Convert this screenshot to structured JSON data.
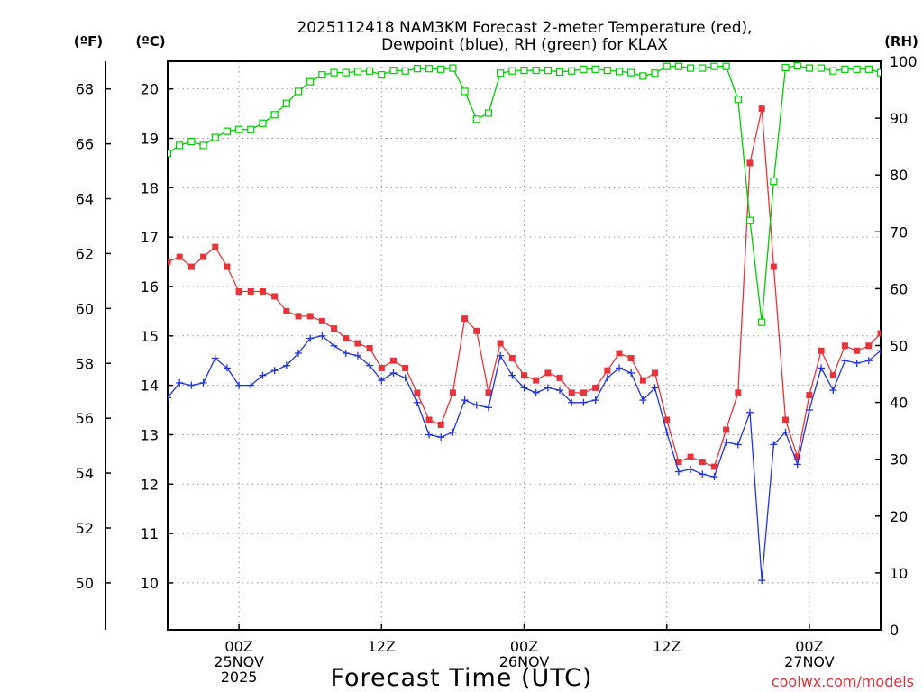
{
  "title": {
    "line1": "2025112418 NAM3KM Forecast 2-meter Temperature (red),",
    "line2": "Dewpoint (blue), RH (green) for KLAX"
  },
  "units": {
    "fahrenheit": "(ºF)",
    "celsius": "(ºC)",
    "rh": "(RH)"
  },
  "x_axis": {
    "title": "Forecast Time (UTC)",
    "ticks": [
      {
        "hour": 6,
        "lines": [
          "00Z",
          "25NOV",
          "2025"
        ]
      },
      {
        "hour": 18,
        "lines": [
          "12Z"
        ]
      },
      {
        "hour": 30,
        "lines": [
          "00Z",
          "26NOV"
        ]
      },
      {
        "hour": 42,
        "lines": [
          "12Z"
        ]
      },
      {
        "hour": 54,
        "lines": [
          "00Z",
          "27NOV"
        ]
      }
    ]
  },
  "credit": "coolwx.com/models",
  "colors": {
    "temperature": "#e8333b",
    "dewpoint": "#2233dd",
    "rh": "#00cc00",
    "grid": "#9a9a9a"
  },
  "chart_data": {
    "type": "line",
    "title": "2025112418 NAM3KM Forecast 2-meter Temperature (red), Dewpoint (blue), RH (green) for KLAX",
    "xlabel": "Forecast Time (UTC)",
    "x_unit": "hours from 2025-11-24 18Z",
    "xlim": [
      0,
      60
    ],
    "y_left_celsius_ticks": [
      10,
      11,
      12,
      13,
      14,
      15,
      16,
      17,
      18,
      19,
      20
    ],
    "y_left_fahrenheit_ticks": [
      50,
      52,
      54,
      56,
      58,
      60,
      62,
      64,
      66,
      68
    ],
    "y_right_rh_ticks": [
      0,
      10,
      20,
      30,
      40,
      50,
      60,
      70,
      80,
      90,
      100
    ],
    "ylim_celsius": [
      9.05,
      20.56
    ],
    "ylim_rh": [
      0,
      100
    ],
    "grid": true,
    "series": [
      {
        "name": "Temperature",
        "axis": "celsius",
        "color": "#e8333b",
        "marker": "filled-square",
        "x": [
          0,
          1,
          2,
          3,
          4,
          5,
          6,
          7,
          8,
          9,
          10,
          11,
          12,
          13,
          14,
          15,
          16,
          17,
          18,
          19,
          20,
          21,
          22,
          23,
          24,
          25,
          26,
          27,
          28,
          29,
          30,
          31,
          32,
          33,
          34,
          35,
          36,
          37,
          38,
          39,
          40,
          41,
          42,
          43,
          44,
          45,
          46,
          47,
          48,
          49,
          50,
          51,
          52,
          53,
          54,
          55,
          56,
          57,
          58,
          59,
          60
        ],
        "values": [
          16.5,
          16.6,
          16.4,
          16.6,
          16.8,
          16.4,
          15.9,
          15.9,
          15.9,
          15.8,
          15.5,
          15.4,
          15.4,
          15.3,
          15.15,
          14.95,
          14.85,
          14.75,
          14.35,
          14.5,
          14.35,
          13.85,
          13.3,
          13.2,
          13.85,
          15.35,
          15.1,
          13.85,
          14.85,
          14.55,
          14.2,
          14.1,
          14.25,
          14.15,
          13.85,
          13.85,
          13.95,
          14.3,
          14.65,
          14.55,
          14.1,
          14.25,
          13.3,
          12.45,
          12.55,
          12.45,
          12.35,
          13.1,
          13.85,
          18.5,
          19.6,
          16.4,
          13.3,
          12.55,
          13.8,
          14.7,
          14.2,
          14.8,
          14.7,
          14.8,
          15.05
        ]
      },
      {
        "name": "Dewpoint",
        "axis": "celsius",
        "color": "#2233dd",
        "marker": "plus",
        "x": [
          0,
          1,
          2,
          3,
          4,
          5,
          6,
          7,
          8,
          9,
          10,
          11,
          12,
          13,
          14,
          15,
          16,
          17,
          18,
          19,
          20,
          21,
          22,
          23,
          24,
          25,
          26,
          27,
          28,
          29,
          30,
          31,
          32,
          33,
          34,
          35,
          36,
          37,
          38,
          39,
          40,
          41,
          42,
          43,
          44,
          45,
          46,
          47,
          48,
          49,
          50,
          51,
          52,
          53,
          54,
          55,
          56,
          57,
          58,
          59,
          60
        ],
        "values": [
          13.75,
          14.05,
          14.0,
          14.05,
          14.55,
          14.35,
          14.0,
          14.0,
          14.2,
          14.3,
          14.4,
          14.65,
          14.95,
          15.0,
          14.8,
          14.65,
          14.6,
          14.4,
          14.1,
          14.25,
          14.15,
          13.65,
          13.0,
          12.95,
          13.05,
          13.7,
          13.6,
          13.55,
          14.6,
          14.2,
          13.95,
          13.85,
          13.95,
          13.9,
          13.65,
          13.65,
          13.7,
          14.15,
          14.35,
          14.25,
          13.7,
          13.95,
          13.05,
          12.25,
          12.3,
          12.2,
          12.15,
          12.85,
          12.8,
          13.45,
          10.05,
          12.8,
          13.05,
          12.4,
          13.5,
          14.35,
          13.9,
          14.5,
          14.45,
          14.5,
          14.7
        ]
      },
      {
        "name": "RH",
        "axis": "rh",
        "color": "#00cc00",
        "marker": "open-square",
        "x": [
          0,
          1,
          2,
          3,
          4,
          5,
          6,
          7,
          8,
          9,
          10,
          11,
          12,
          13,
          14,
          15,
          16,
          17,
          18,
          19,
          20,
          21,
          22,
          23,
          24,
          25,
          26,
          27,
          28,
          29,
          30,
          31,
          32,
          33,
          34,
          35,
          36,
          37,
          38,
          39,
          40,
          41,
          42,
          43,
          44,
          45,
          46,
          47,
          48,
          49,
          50,
          51,
          52,
          53,
          54,
          55,
          56,
          57,
          58,
          59,
          60
        ],
        "values": [
          83.8,
          85.2,
          85.9,
          85.2,
          86.6,
          87.7,
          88.0,
          88.0,
          89.1,
          90.6,
          92.6,
          94.7,
          96.4,
          97.6,
          98.0,
          98.0,
          98.2,
          98.3,
          97.6,
          98.4,
          98.3,
          98.7,
          98.7,
          98.6,
          98.8,
          94.7,
          89.8,
          90.9,
          97.9,
          98.3,
          98.4,
          98.4,
          98.4,
          98.1,
          98.3,
          98.6,
          98.6,
          98.4,
          98.2,
          98.0,
          97.4,
          97.9,
          99.1,
          99.1,
          98.8,
          98.8,
          99.1,
          99.1,
          93.3,
          72.0,
          54.1,
          78.9,
          98.9,
          99.2,
          98.8,
          98.8,
          98.3,
          98.6,
          98.6,
          98.6,
          98.0
        ]
      }
    ]
  }
}
